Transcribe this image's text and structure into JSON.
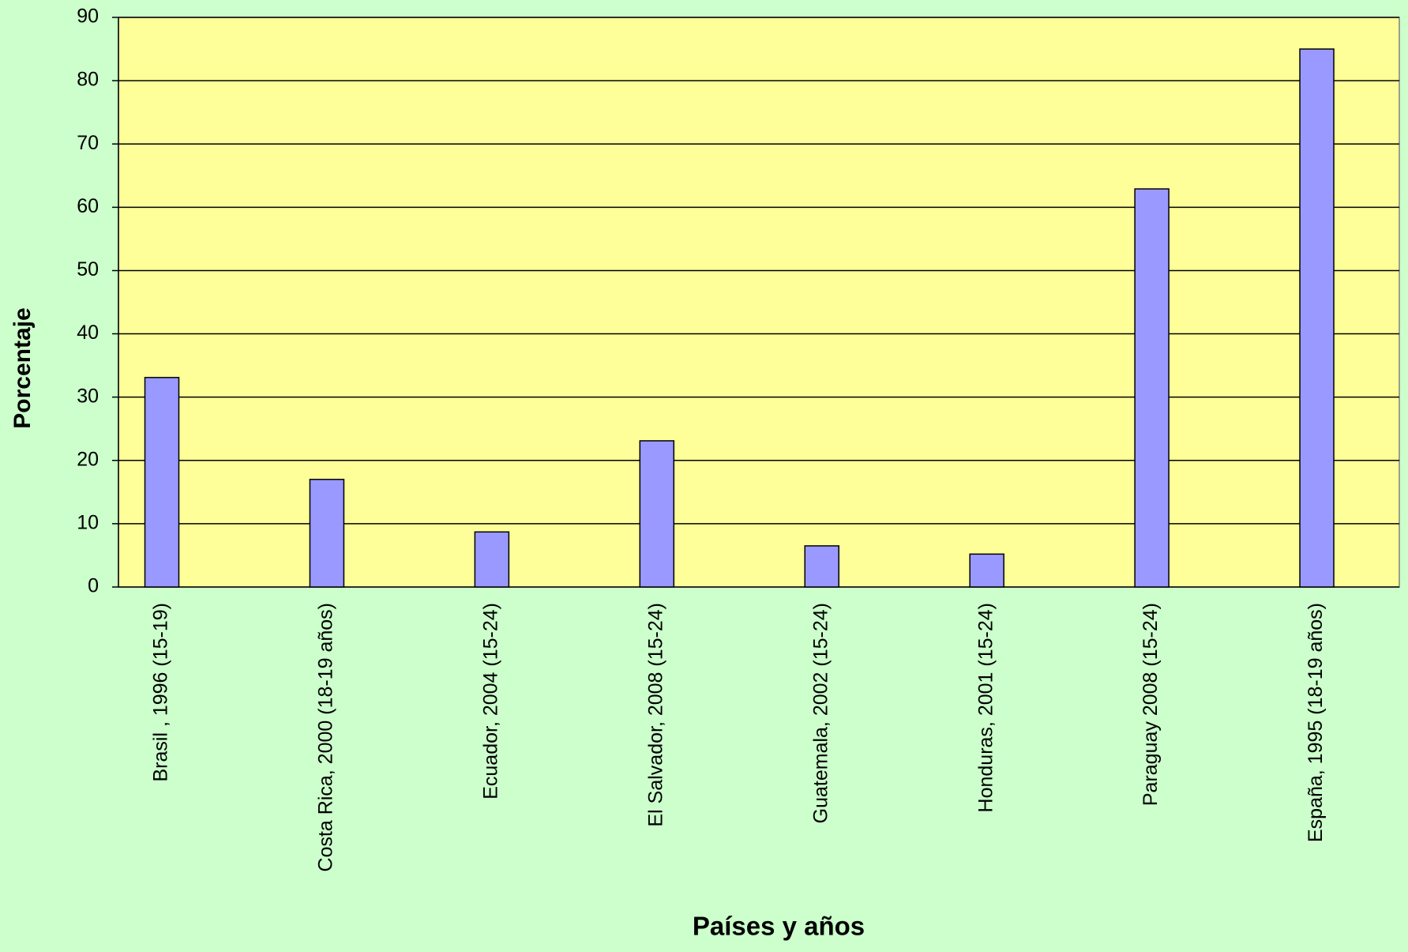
{
  "chart_data": {
    "type": "bar",
    "categories": [
      "Brasil , 1996 (15-19)",
      "Costa Rica, 2000 (18-19 años)",
      "Ecuador, 2004 (15-24)",
      "El Salvador, 2008 (15-24)",
      "Guatemala, 2002 (15-24)",
      "Honduras, 2001 (15-24)",
      "Paraguay 2008 (15-24)",
      "España, 1995 (18-19 años)"
    ],
    "values": [
      33.1,
      17,
      8.7,
      23.1,
      6.5,
      5.2,
      62.9,
      85
    ],
    "color": "#9999ff",
    "x_label": "Países y años",
    "y_label": "Porcentaje",
    "ylim": [
      0,
      90
    ],
    "yticks": [
      0,
      10,
      20,
      30,
      40,
      50,
      60,
      70,
      80,
      90
    ],
    "grid": true
  }
}
